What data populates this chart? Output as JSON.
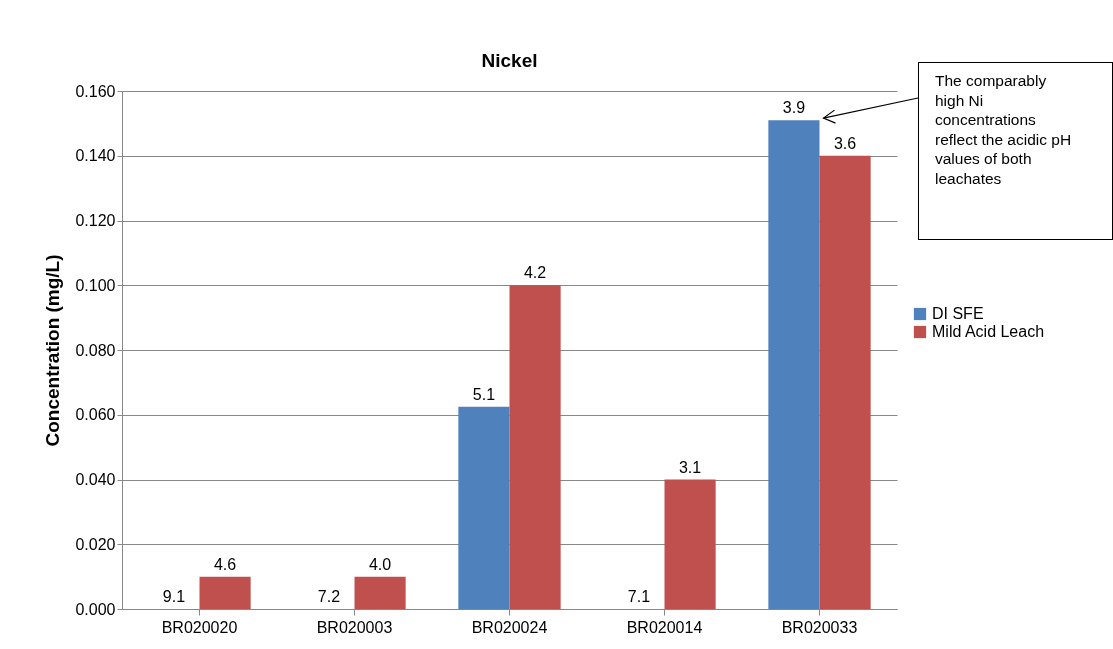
{
  "chart_data": {
    "type": "bar",
    "title": "Nickel",
    "ylabel": "Concentration (mg/L)",
    "categories": [
      "BR020020",
      "BR020003",
      "BR020024",
      "BR020014",
      "BR020033"
    ],
    "series": [
      {
        "name": "DI SFE",
        "color": "#4f81bd",
        "values": [
          0,
          0,
          0.0625,
          0,
          0.151
        ]
      },
      {
        "name": "Mild Acid Leach",
        "color": "#c0504d",
        "values": [
          0.01,
          0.01,
          0.1,
          0.04,
          0.14
        ]
      }
    ],
    "ylim": [
      0,
      0.16
    ],
    "yticks": [
      {
        "value": 0,
        "label": "0.000"
      },
      {
        "value": 0.02,
        "label": "0.020"
      },
      {
        "value": 0.04,
        "label": "0.040"
      },
      {
        "value": 0.06,
        "label": "0.060"
      },
      {
        "value": 0.08,
        "label": "0.080"
      },
      {
        "value": 0.1,
        "label": "0.100"
      },
      {
        "value": 0.12,
        "label": "0.120"
      },
      {
        "value": 0.14,
        "label": "0.140"
      },
      {
        "value": 0.16,
        "label": "0.160"
      }
    ],
    "grid": "y",
    "legend": "right",
    "annotations": [
      {
        "text": "The comparably high Ni concentrations reflect the acidic pH values of both leachates",
        "x": "BR020033",
        "y": 0.151
      },
      {
        "text": "9.1",
        "x": "BR020020",
        "y": 0
      },
      {
        "text": "4.6",
        "x": "BR020020",
        "y": 0.01
      },
      {
        "text": "7.2",
        "x": "BR020003",
        "y": 0
      },
      {
        "text": "4.0",
        "x": "BR020003",
        "y": 0.01
      },
      {
        "text": "5.1",
        "x": "BR020024",
        "y": 0.0625
      },
      {
        "text": "4.2",
        "x": "BR020024",
        "y": 0.1
      },
      {
        "text": "7.1",
        "x": "BR020014",
        "y": 0
      },
      {
        "text": "3.1",
        "x": "BR020014",
        "y": 0.04
      },
      {
        "text": "3.9",
        "x": "BR020033",
        "y": 0.151
      },
      {
        "text": "3.6",
        "x": "BR020033",
        "y": 0.14
      }
    ]
  }
}
